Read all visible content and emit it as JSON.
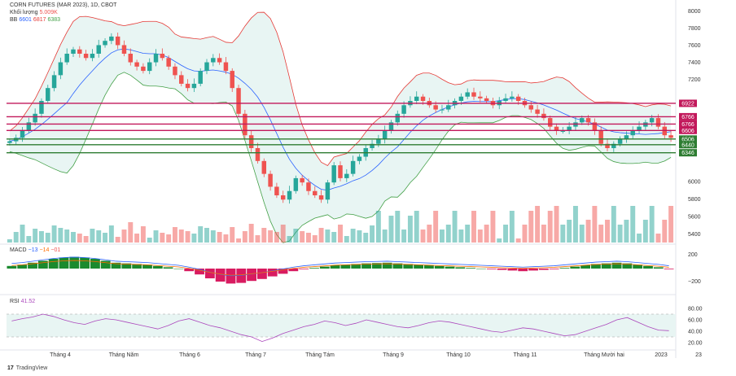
{
  "title": "CORN FUTURES (MAR 2023), 1D, CBOT",
  "volume_legend": {
    "label": "Khối lượng",
    "value": "5.009K"
  },
  "bb_legend": {
    "label": "BB",
    "v1": "6601",
    "v2": "6817",
    "v3": "6383"
  },
  "macd_legend": {
    "label": "MACD",
    "v1": "−13",
    "v2": "−14",
    "v3": "−01"
  },
  "rsi_legend": {
    "label": "RSI",
    "value": "41.52"
  },
  "brand": {
    "mark": "17",
    "name": "TradingView"
  },
  "colors": {
    "up": "#26a69a",
    "down": "#ef5350",
    "level_red": "#c2185b",
    "level_green": "#2e7d32",
    "bb_upper": "#e53935",
    "bb_lower": "#43a047",
    "bb_mid": "#2962ff",
    "bb_fill": "#e8f5f3",
    "rsi_line": "#ab47bc",
    "macd_line": "#2962ff",
    "signal_line": "#ff6d00"
  },
  "chart_data": {
    "type": "candlestick",
    "price_axis_ticks": [
      "8000",
      "7800",
      "7600",
      "7400",
      "7200",
      "6000",
      "5800",
      "5600",
      "5400"
    ],
    "price_ylim": [
      5300,
      8050
    ],
    "levels": [
      {
        "label": "6922",
        "value": 6922,
        "color": "red"
      },
      {
        "label": "6766",
        "value": 6766,
        "color": "red"
      },
      {
        "label": "6766",
        "value": 6766,
        "color": "red"
      },
      {
        "label": "6606",
        "value": 6606,
        "color": "red"
      },
      {
        "label": "6506",
        "value": 6506,
        "color": "green"
      },
      {
        "label": "6440",
        "value": 6440,
        "color": "green"
      },
      {
        "label": "6346",
        "value": 6346,
        "color": "green"
      }
    ],
    "x_labels": [
      "Tháng 4",
      "Tháng Năm",
      "Tháng 6",
      "Tháng 7",
      "Tháng Tám",
      "Tháng 9",
      "Tháng 10",
      "Tháng 11",
      "Tháng Mười hai",
      "2023",
      "23"
    ],
    "macd_ticks": [
      "200",
      "−200"
    ],
    "rsi_ticks": [
      "80.00",
      "60.00",
      "40.00",
      "20.00"
    ],
    "rsi_band": [
      30,
      70
    ],
    "close_series": [
      6480,
      6520,
      6600,
      6700,
      6800,
      6950,
      7100,
      7250,
      7400,
      7500,
      7550,
      7500,
      7450,
      7500,
      7600,
      7650,
      7700,
      7600,
      7500,
      7400,
      7350,
      7300,
      7400,
      7500,
      7450,
      7350,
      7250,
      7150,
      7100,
      7150,
      7300,
      7400,
      7450,
      7400,
      7300,
      7100,
      6800,
      6550,
      6400,
      6250,
      6100,
      5950,
      5850,
      5800,
      5900,
      6050,
      6000,
      5900,
      5850,
      5800,
      6000,
      6200,
      6050,
      6100,
      6250,
      6300,
      6400,
      6450,
      6500,
      6600,
      6700,
      6800,
      6900,
      6950,
      7000,
      6950,
      6900,
      6850,
      6850,
      6900,
      6950,
      7000,
      7050,
      7000,
      6980,
      6950,
      6900,
      6950,
      6980,
      7000,
      6950,
      6900,
      6850,
      6800,
      6750,
      6650,
      6600,
      6600,
      6650,
      6700,
      6750,
      6700,
      6600,
      6450,
      6400,
      6450,
      6500,
      6550,
      6600,
      6650,
      6700,
      6750,
      6650,
      6550,
      6520
    ],
    "macd_values": [
      40,
      60,
      90,
      120,
      150,
      170,
      180,
      170,
      150,
      120,
      90,
      80,
      70,
      60,
      40,
      20,
      0,
      -40,
      -90,
      -150,
      -200,
      -230,
      -220,
      -190,
      -160,
      -120,
      -80,
      -40,
      -10,
      10,
      30,
      50,
      60,
      70,
      80,
      85,
      90,
      80,
      70,
      60,
      50,
      40,
      30,
      20,
      10,
      0,
      -10,
      -20,
      -30,
      -40,
      -30,
      -20,
      -10,
      10,
      30,
      50,
      70,
      80,
      90,
      80,
      60,
      40,
      20,
      -10
    ],
    "rsi_values": [
      58,
      62,
      65,
      70,
      66,
      60,
      55,
      52,
      58,
      62,
      60,
      56,
      52,
      48,
      44,
      50,
      58,
      62,
      56,
      50,
      46,
      40,
      34,
      30,
      22,
      28,
      36,
      42,
      48,
      52,
      58,
      55,
      50,
      54,
      60,
      56,
      52,
      48,
      46,
      50,
      55,
      58,
      56,
      52,
      48,
      44,
      40,
      38,
      42,
      46,
      44,
      40,
      36,
      32,
      34,
      40,
      46,
      52,
      60,
      64,
      56,
      48,
      42,
      41
    ]
  }
}
